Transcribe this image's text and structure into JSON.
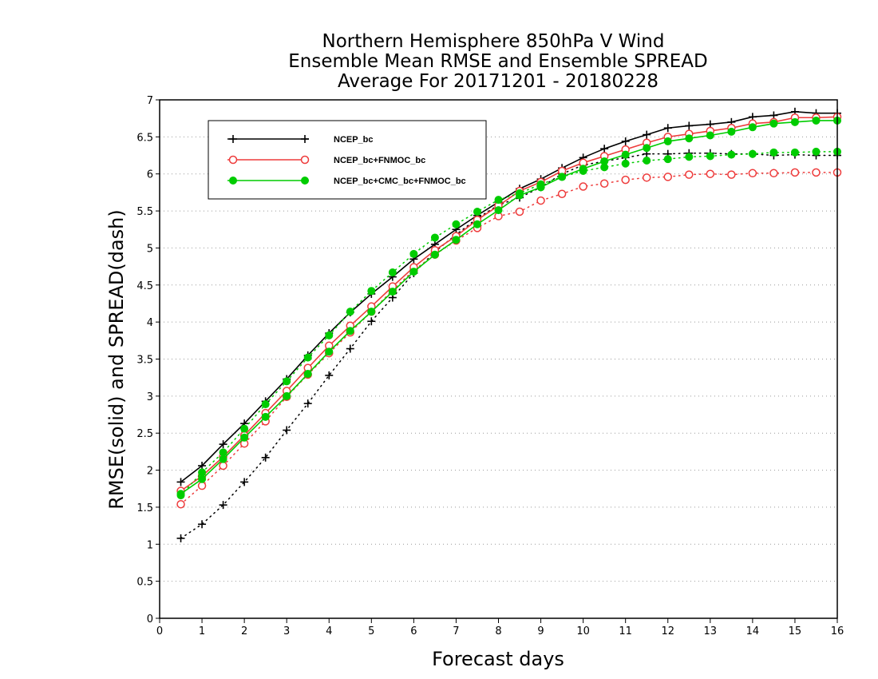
{
  "chart_data": {
    "type": "line",
    "title_lines": [
      "Northern Hemisphere 850hPa V Wind",
      "Ensemble Mean RMSE and Ensemble SPREAD",
      "Average For 20171201 - 20180228"
    ],
    "xlabel": "Forecast days",
    "ylabel": "RMSE(solid) and SPREAD(dash)",
    "xlim": [
      0,
      16
    ],
    "ylim": [
      0,
      7
    ],
    "xticks": [
      "0",
      "1",
      "2",
      "3",
      "4",
      "5",
      "6",
      "7",
      "8",
      "9",
      "10",
      "11",
      "12",
      "13",
      "14",
      "15",
      "16"
    ],
    "yticks": [
      "0",
      "0.5",
      "1",
      "1.5",
      "2",
      "2.5",
      "3",
      "3.5",
      "4",
      "4.5",
      "5",
      "5.5",
      "6",
      "6.5",
      "7"
    ],
    "grid": "horizontal dotted",
    "legend_position": "top-left",
    "x": [
      0.5,
      1,
      1.5,
      2,
      2.5,
      3,
      3.5,
      4,
      4.5,
      5,
      5.5,
      6,
      6.5,
      7,
      7.5,
      8,
      8.5,
      9,
      9.5,
      10,
      10.5,
      11,
      11.5,
      12,
      12.5,
      13,
      13.5,
      14,
      14.5,
      15,
      15.5,
      16
    ],
    "series": [
      {
        "name": "NCEP_bc",
        "color": "#000000",
        "marker": "plus",
        "rmse": [
          1.84,
          2.06,
          2.35,
          2.63,
          2.93,
          3.23,
          3.55,
          3.85,
          4.13,
          4.38,
          4.61,
          4.85,
          5.05,
          5.25,
          5.44,
          5.62,
          5.8,
          5.93,
          6.08,
          6.22,
          6.34,
          6.44,
          6.53,
          6.62,
          6.65,
          6.67,
          6.7,
          6.77,
          6.79,
          6.84,
          6.82,
          6.82
        ],
        "spread": [
          1.08,
          1.27,
          1.53,
          1.84,
          2.17,
          2.54,
          2.9,
          3.28,
          3.64,
          4.01,
          4.33,
          4.66,
          4.95,
          5.18,
          5.4,
          5.58,
          5.68,
          5.82,
          6.0,
          6.12,
          6.17,
          6.22,
          6.27,
          6.27,
          6.28,
          6.28,
          6.27,
          6.27,
          6.25,
          6.26,
          6.25,
          6.25
        ]
      },
      {
        "name": "NCEP_bc+FNMOC_bc",
        "color": "#ee3b3b",
        "marker": "open-circle",
        "rmse": [
          1.72,
          1.92,
          2.18,
          2.47,
          2.77,
          3.07,
          3.38,
          3.68,
          3.95,
          4.21,
          4.48,
          4.74,
          4.97,
          5.16,
          5.38,
          5.57,
          5.77,
          5.89,
          6.04,
          6.15,
          6.24,
          6.33,
          6.42,
          6.5,
          6.54,
          6.58,
          6.62,
          6.68,
          6.7,
          6.76,
          6.76,
          6.77
        ],
        "spread": [
          1.54,
          1.79,
          2.06,
          2.36,
          2.66,
          2.99,
          3.29,
          3.58,
          3.86,
          4.14,
          4.43,
          4.7,
          4.91,
          5.1,
          5.27,
          5.43,
          5.49,
          5.64,
          5.73,
          5.83,
          5.87,
          5.92,
          5.95,
          5.96,
          5.99,
          6.0,
          5.99,
          6.01,
          6.01,
          6.02,
          6.02,
          6.02
        ]
      },
      {
        "name": "NCEP_bc+CMC_bc+FNMOC_bc",
        "color": "#00cc00",
        "marker": "filled-circle",
        "rmse": [
          1.68,
          1.88,
          2.15,
          2.44,
          2.72,
          3.0,
          3.3,
          3.6,
          3.88,
          4.14,
          4.41,
          4.68,
          4.91,
          5.11,
          5.32,
          5.51,
          5.71,
          5.82,
          5.96,
          6.07,
          6.17,
          6.26,
          6.35,
          6.44,
          6.48,
          6.52,
          6.57,
          6.63,
          6.68,
          6.7,
          6.72,
          6.72
        ],
        "spread": [
          1.66,
          1.97,
          2.24,
          2.56,
          2.89,
          3.2,
          3.52,
          3.82,
          4.14,
          4.42,
          4.67,
          4.92,
          5.14,
          5.32,
          5.49,
          5.65,
          5.74,
          5.86,
          5.96,
          6.04,
          6.09,
          6.14,
          6.18,
          6.2,
          6.23,
          6.24,
          6.26,
          6.27,
          6.29,
          6.29,
          6.3,
          6.3
        ]
      }
    ]
  }
}
